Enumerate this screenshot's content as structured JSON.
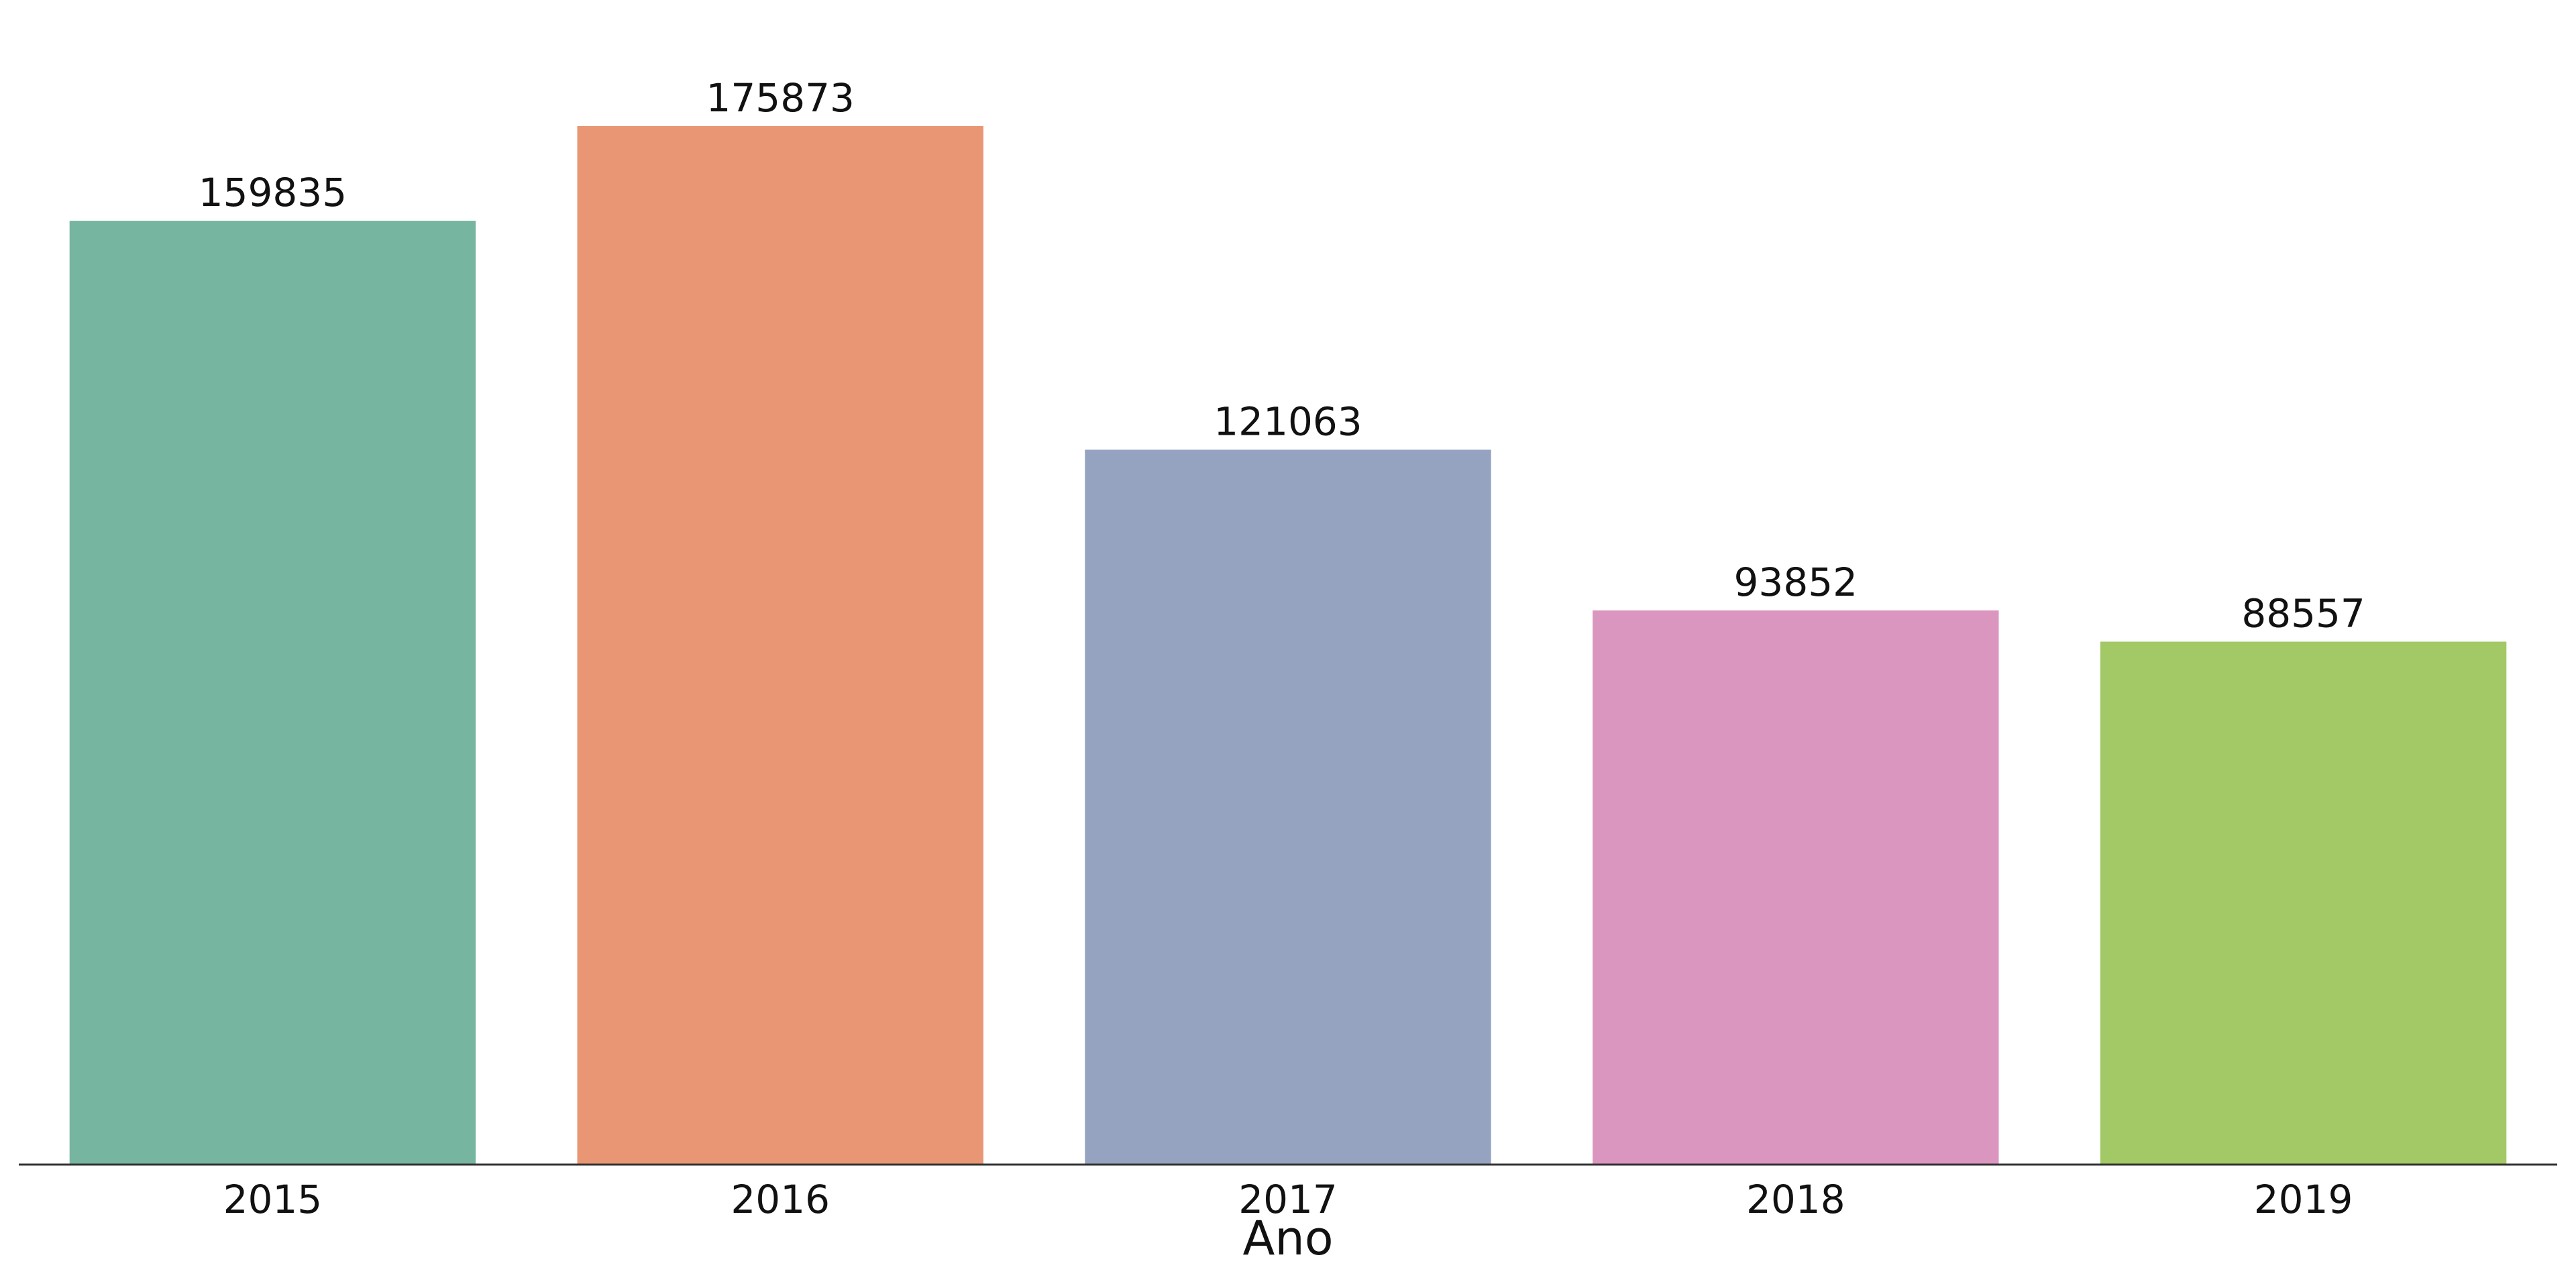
{
  "chart_data": {
    "type": "bar",
    "categories": [
      "2015",
      "2016",
      "2017",
      "2018",
      "2019"
    ],
    "values": [
      159835,
      175873,
      121063,
      93852,
      88557
    ],
    "data_labels": [
      "159835",
      "175873",
      "121063",
      "93852",
      "88557"
    ],
    "colors": [
      "#76b59f",
      "#e99674",
      "#95a3c1",
      "#db96c0",
      "#a3c866"
    ],
    "title": "",
    "xlabel": "Ano",
    "ylabel": "",
    "ylim": [
      0,
      187000
    ],
    "grid": false,
    "legend": "none"
  }
}
